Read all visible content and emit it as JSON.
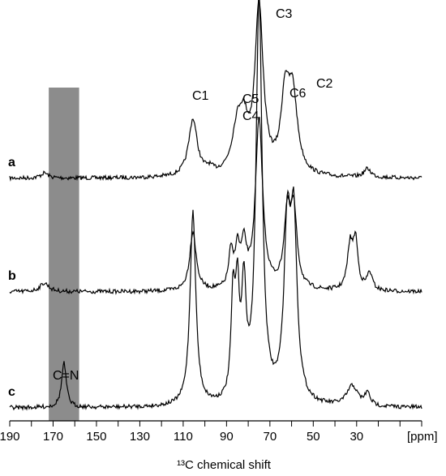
{
  "chart_data": {
    "type": "line",
    "xlabel": "¹³C chemical shift",
    "unit_label": "[ppm]",
    "xlim": [
      190,
      0
    ],
    "x_reversed": true,
    "x_ticks": [
      190,
      170,
      150,
      130,
      110,
      90,
      70,
      50,
      30
    ],
    "highlight_band": {
      "from": 172,
      "to": 158,
      "color": "#8c8c8c"
    },
    "line_color": "#000000",
    "series": [
      {
        "name": "a",
        "peaks": [
          {
            "x": 174,
            "h": 0.03,
            "w": 2
          },
          {
            "x": 105.5,
            "h": 0.33,
            "w": 2.4
          },
          {
            "x": 98,
            "h": 0.03,
            "w": 2
          },
          {
            "x": 85,
            "h": 0.25,
            "w": 3.0
          },
          {
            "x": 82,
            "h": 0.22,
            "w": 2.5
          },
          {
            "x": 75,
            "h": 0.97,
            "w": 2.3
          },
          {
            "x": 63,
            "h": 0.42,
            "w": 2.2
          },
          {
            "x": 59.5,
            "h": 0.45,
            "w": 2.6
          },
          {
            "x": 25,
            "h": 0.05,
            "w": 2.0
          }
        ]
      },
      {
        "name": "b",
        "peaks": [
          {
            "x": 174,
            "h": 0.05,
            "w": 2.5
          },
          {
            "x": 105.5,
            "h": 0.34,
            "w": 1.8
          },
          {
            "x": 88,
            "h": 0.2,
            "w": 1.2
          },
          {
            "x": 85,
            "h": 0.21,
            "w": 1.3
          },
          {
            "x": 82,
            "h": 0.23,
            "w": 1.5
          },
          {
            "x": 75,
            "h": 0.97,
            "w": 2.0
          },
          {
            "x": 62,
            "h": 0.4,
            "w": 1.8
          },
          {
            "x": 59,
            "h": 0.42,
            "w": 1.8
          },
          {
            "x": 33,
            "h": 0.25,
            "w": 1.5
          },
          {
            "x": 30.5,
            "h": 0.27,
            "w": 1.3
          },
          {
            "x": 24,
            "h": 0.1,
            "w": 1.5
          }
        ]
      },
      {
        "name": "c",
        "peaks": [
          {
            "x": 165,
            "h": 0.11,
            "w": 1.3
          },
          {
            "x": 105.5,
            "h": 0.48,
            "w": 1.6
          },
          {
            "x": 87,
            "h": 0.24,
            "w": 1.1
          },
          {
            "x": 85,
            "h": 0.24,
            "w": 1.1
          },
          {
            "x": 82,
            "h": 0.26,
            "w": 1.3
          },
          {
            "x": 75,
            "h": 1.0,
            "w": 1.7
          },
          {
            "x": 62,
            "h": 0.4,
            "w": 1.8
          },
          {
            "x": 59,
            "h": 0.42,
            "w": 1.8
          },
          {
            "x": 32,
            "h": 0.05,
            "w": 3.0
          },
          {
            "x": 25,
            "h": 0.03,
            "w": 1.5
          }
        ]
      }
    ],
    "annotations": [
      {
        "text": "C1",
        "x": 106,
        "trace": "a"
      },
      {
        "text": "C5",
        "x": 85,
        "trace": "a"
      },
      {
        "text": "C4",
        "x": 85,
        "trace": "a"
      },
      {
        "text": "C3",
        "x": 72,
        "trace": "a"
      },
      {
        "text": "C6",
        "x": 63,
        "trace": "a"
      },
      {
        "text": "C2",
        "x": 54,
        "trace": "a"
      },
      {
        "text": "C=N",
        "x": 165,
        "trace": "c"
      }
    ]
  }
}
